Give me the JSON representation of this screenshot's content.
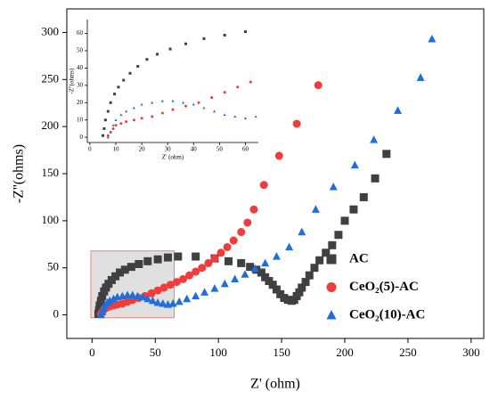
{
  "chart_data": {
    "type": "scatter",
    "xlabel": "Z' (ohm)",
    "ylabel": "-Z''(ohms)",
    "xlim": [
      -20,
      310
    ],
    "ylim": [
      -25,
      325
    ],
    "xticks": [
      0,
      50,
      100,
      150,
      200,
      250,
      300
    ],
    "yticks": [
      0,
      50,
      100,
      150,
      200,
      250,
      300
    ],
    "legend": "lower right",
    "series": [
      {
        "name": "AC",
        "color": "#404040",
        "marker": "square",
        "x": [
          5,
          5.5,
          6,
          7,
          8,
          9.5,
          11,
          13,
          15.5,
          18.5,
          22,
          26,
          31,
          37,
          44,
          52,
          60,
          68,
          82,
          97,
          108,
          118,
          125,
          130,
          134,
          137,
          140,
          143,
          146,
          149,
          152,
          155,
          158,
          160,
          162,
          164,
          166,
          169,
          172,
          176,
          180,
          185,
          190,
          195,
          200,
          207,
          215,
          224,
          233
        ],
        "values": [
          1,
          5,
          10,
          15,
          20,
          25,
          29,
          33,
          37,
          41,
          45,
          48,
          51,
          54,
          57,
          59,
          61,
          62,
          62,
          60,
          57,
          55,
          51,
          48,
          45,
          40,
          36,
          32,
          27,
          22,
          18,
          16,
          15,
          16,
          20,
          24,
          29,
          35,
          42,
          50,
          58,
          66,
          74,
          85,
          100,
          112,
          125,
          145,
          171
        ]
      },
      {
        "name": "CeO₂(5)-AC",
        "color": "#f03c3c",
        "marker": "circle",
        "x": [
          7,
          8,
          9,
          10,
          12,
          14,
          17,
          20,
          24,
          28,
          32,
          37,
          42,
          47,
          52,
          57,
          62,
          67,
          72,
          77,
          82,
          87,
          92,
          97,
          102,
          107,
          112,
          118,
          123,
          128,
          136,
          148,
          162,
          179
        ],
        "values": [
          1,
          3,
          5,
          7,
          8,
          9,
          10,
          11,
          12,
          14,
          16,
          18,
          20,
          23,
          26,
          29,
          32,
          35,
          38,
          42,
          46,
          50,
          55,
          60,
          66,
          72,
          79,
          88,
          98,
          112,
          138,
          169,
          203,
          244
        ]
      },
      {
        "name": "CeO₂(10)-AC",
        "color": "#1e6fd9",
        "marker": "triangle",
        "x": [
          7,
          8,
          9,
          10,
          12,
          14,
          17,
          20,
          24,
          28,
          32,
          36,
          40,
          44,
          48,
          52,
          56,
          60,
          64,
          69,
          75,
          82,
          89,
          97,
          105,
          113,
          121,
          129,
          137,
          146,
          156,
          166,
          177,
          191,
          208,
          223,
          242,
          260,
          269
        ],
        "values": [
          0,
          3,
          7,
          10,
          13,
          15,
          17,
          19,
          20,
          21,
          21,
          20,
          19,
          17,
          15,
          13,
          12,
          11,
          12,
          14,
          17,
          20,
          24,
          28,
          33,
          38,
          43,
          49,
          55,
          62,
          72,
          88,
          112,
          136,
          159,
          186,
          217,
          252,
          293
        ]
      }
    ],
    "inset": {
      "xlabel": "Z' (ohm)",
      "ylabel": "-Z''(ohms)",
      "xlim": [
        -1,
        65
      ],
      "ylim": [
        -3,
        68
      ],
      "xticks": [
        0,
        10,
        20,
        30,
        40,
        50,
        60
      ],
      "yticks": [
        0,
        10,
        20,
        30,
        40,
        50,
        60
      ]
    }
  }
}
